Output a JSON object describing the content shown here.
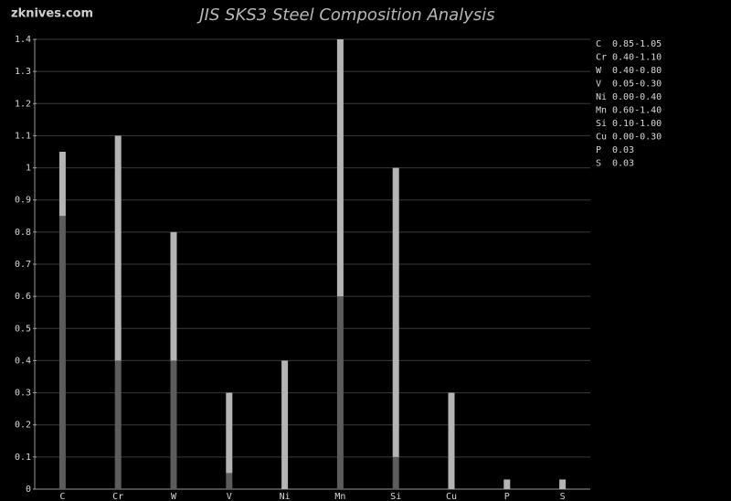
{
  "chart_data": {
    "type": "range-bar",
    "watermark": "zknives.com",
    "title": "JIS SKS3 Steel Composition Analysis",
    "categories": [
      "C",
      "Cr",
      "W",
      "V",
      "Ni",
      "Mn",
      "Si",
      "Cu",
      "P",
      "S"
    ],
    "min": [
      0.85,
      0.4,
      0.4,
      0.05,
      0,
      0.6,
      0.1,
      0,
      null,
      null
    ],
    "max": [
      1.05,
      1.1,
      0.8,
      0.3,
      0.4,
      1.4,
      1,
      0.3,
      0.03,
      0.03
    ],
    "value_labels": [
      "0.85-1.05",
      "0.40-1.10",
      "0.40-0.80",
      "0.05-0.30",
      "0.00-0.40",
      "0.60-1.40",
      "0.10-1.00",
      "0.00-0.30",
      "0.03",
      "0.03"
    ],
    "colors": {
      "lower": "#5c5c5c",
      "upper": "#b4b4b4"
    },
    "ylim": [
      0,
      1.4
    ],
    "yticks": [
      0,
      0.1,
      0.2,
      0.3,
      0.4,
      0.5,
      0.6,
      0.7,
      0.8,
      0.9,
      1,
      1.1,
      1.2,
      1.3,
      1.4
    ],
    "grid": true
  }
}
